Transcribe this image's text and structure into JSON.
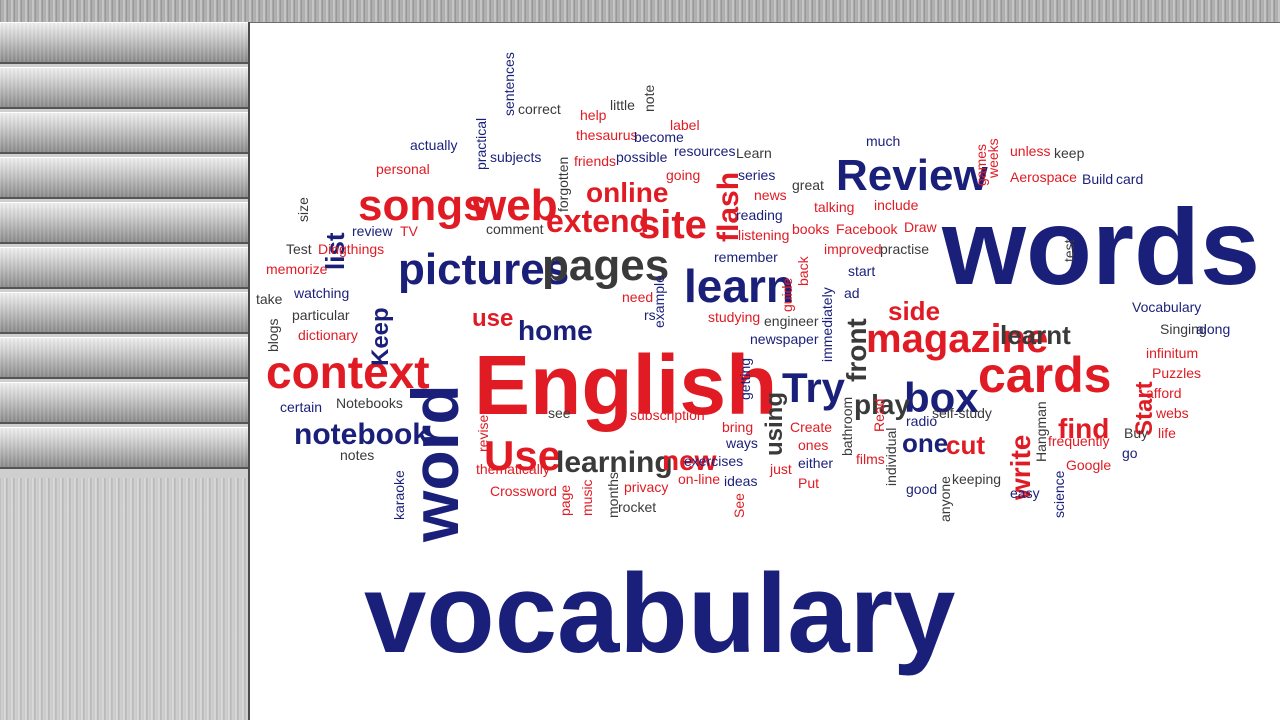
{
  "colors": {
    "red": "#e01b24",
    "navy": "#1a1f7a",
    "gray": "#3a3a3a"
  },
  "words": [
    {
      "t": "vocabulary",
      "c": "navy"
    },
    {
      "t": "words",
      "c": "navy"
    },
    {
      "t": "English",
      "c": "red"
    },
    {
      "t": "word",
      "c": "navy"
    },
    {
      "t": "pictures",
      "c": "navy"
    },
    {
      "t": "pages",
      "c": "gray"
    },
    {
      "t": "context",
      "c": "red"
    },
    {
      "t": "Review",
      "c": "navy"
    },
    {
      "t": "songs",
      "c": "red"
    },
    {
      "t": "web",
      "c": "red"
    },
    {
      "t": "cards",
      "c": "red"
    },
    {
      "t": "magazine",
      "c": "red"
    },
    {
      "t": "learn",
      "c": "navy"
    },
    {
      "t": "site",
      "c": "red"
    },
    {
      "t": "extend",
      "c": "red"
    },
    {
      "t": "online",
      "c": "red"
    },
    {
      "t": "box",
      "c": "navy"
    },
    {
      "t": "Try",
      "c": "navy"
    },
    {
      "t": "Use",
      "c": "red"
    },
    {
      "t": "notebook",
      "c": "navy"
    },
    {
      "t": "learning",
      "c": "gray"
    },
    {
      "t": "new",
      "c": "red"
    },
    {
      "t": "home",
      "c": "navy"
    },
    {
      "t": "flash",
      "c": "red"
    },
    {
      "t": "list",
      "c": "navy"
    },
    {
      "t": "Keep",
      "c": "navy"
    },
    {
      "t": "side",
      "c": "red"
    },
    {
      "t": "front",
      "c": "gray"
    },
    {
      "t": "play",
      "c": "gray"
    },
    {
      "t": "learnt",
      "c": "gray"
    },
    {
      "t": "find",
      "c": "red"
    },
    {
      "t": "write",
      "c": "red"
    },
    {
      "t": "cut",
      "c": "red"
    },
    {
      "t": "one",
      "c": "navy"
    },
    {
      "t": "using",
      "c": "gray"
    },
    {
      "t": "use",
      "c": "red"
    },
    {
      "t": "Start",
      "c": "red"
    },
    {
      "t": "Vocabulary",
      "c": "navy"
    },
    {
      "t": "Singing",
      "c": "gray"
    },
    {
      "t": "along",
      "c": "navy"
    },
    {
      "t": "infinitum",
      "c": "red"
    },
    {
      "t": "Puzzles",
      "c": "red"
    },
    {
      "t": "afford",
      "c": "red"
    },
    {
      "t": "webs",
      "c": "red"
    },
    {
      "t": "life",
      "c": "red"
    },
    {
      "t": "Buy",
      "c": "gray"
    },
    {
      "t": "go",
      "c": "navy"
    },
    {
      "t": "Google",
      "c": "red"
    },
    {
      "t": "frequently",
      "c": "red"
    },
    {
      "t": "easy",
      "c": "navy"
    },
    {
      "t": "science",
      "c": "navy"
    },
    {
      "t": "Hangman",
      "c": "gray"
    },
    {
      "t": "keeping",
      "c": "gray"
    },
    {
      "t": "self-study",
      "c": "gray"
    },
    {
      "t": "good",
      "c": "navy"
    },
    {
      "t": "anyone",
      "c": "gray"
    },
    {
      "t": "individual",
      "c": "gray"
    },
    {
      "t": "films",
      "c": "red"
    },
    {
      "t": "radio",
      "c": "navy"
    },
    {
      "t": "bathroom",
      "c": "gray"
    },
    {
      "t": "Read",
      "c": "red"
    },
    {
      "t": "either",
      "c": "navy"
    },
    {
      "t": "Put",
      "c": "red"
    },
    {
      "t": "just",
      "c": "red"
    },
    {
      "t": "ones",
      "c": "red"
    },
    {
      "t": "Create",
      "c": "red"
    },
    {
      "t": "ideas",
      "c": "navy"
    },
    {
      "t": "exercises",
      "c": "navy"
    },
    {
      "t": "on-line",
      "c": "red"
    },
    {
      "t": "ways",
      "c": "navy"
    },
    {
      "t": "bring",
      "c": "red"
    },
    {
      "t": "See",
      "c": "red"
    },
    {
      "t": "rocket",
      "c": "gray"
    },
    {
      "t": "privacy",
      "c": "red"
    },
    {
      "t": "subscription",
      "c": "red"
    },
    {
      "t": "months",
      "c": "gray"
    },
    {
      "t": "music",
      "c": "red"
    },
    {
      "t": "page",
      "c": "red"
    },
    {
      "t": "Crossword",
      "c": "red"
    },
    {
      "t": "thematically",
      "c": "red"
    },
    {
      "t": "see",
      "c": "gray"
    },
    {
      "t": "revise",
      "c": "red"
    },
    {
      "t": "karaoke",
      "c": "navy"
    },
    {
      "t": "notes",
      "c": "gray"
    },
    {
      "t": "certain",
      "c": "navy"
    },
    {
      "t": "Notebooks",
      "c": "gray"
    },
    {
      "t": "dictionary",
      "c": "red"
    },
    {
      "t": "particular",
      "c": "gray"
    },
    {
      "t": "watching",
      "c": "navy"
    },
    {
      "t": "blogs",
      "c": "gray"
    },
    {
      "t": "take",
      "c": "gray"
    },
    {
      "t": "memorize",
      "c": "red"
    },
    {
      "t": "Test",
      "c": "gray"
    },
    {
      "t": "Dingthings",
      "c": "red"
    },
    {
      "t": "review",
      "c": "navy"
    },
    {
      "t": "TV",
      "c": "red"
    },
    {
      "t": "size",
      "c": "gray"
    },
    {
      "t": "personal",
      "c": "red"
    },
    {
      "t": "actually",
      "c": "navy"
    },
    {
      "t": "practical",
      "c": "navy"
    },
    {
      "t": "subjects",
      "c": "navy"
    },
    {
      "t": "sentences",
      "c": "navy"
    },
    {
      "t": "correct",
      "c": "gray"
    },
    {
      "t": "comment",
      "c": "gray"
    },
    {
      "t": "forgotten",
      "c": "gray"
    },
    {
      "t": "help",
      "c": "red"
    },
    {
      "t": "little",
      "c": "gray"
    },
    {
      "t": "note",
      "c": "gray"
    },
    {
      "t": "thesaurus",
      "c": "red"
    },
    {
      "t": "become",
      "c": "navy"
    },
    {
      "t": "label",
      "c": "red"
    },
    {
      "t": "friends",
      "c": "red"
    },
    {
      "t": "possible",
      "c": "navy"
    },
    {
      "t": "resources",
      "c": "navy"
    },
    {
      "t": "going",
      "c": "red"
    },
    {
      "t": "Learn",
      "c": "gray"
    },
    {
      "t": "series",
      "c": "navy"
    },
    {
      "t": "news",
      "c": "red"
    },
    {
      "t": "great",
      "c": "gray"
    },
    {
      "t": "reading",
      "c": "navy"
    },
    {
      "t": "listening",
      "c": "red"
    },
    {
      "t": "books",
      "c": "red"
    },
    {
      "t": "talking",
      "c": "red"
    },
    {
      "t": "Facebook",
      "c": "red"
    },
    {
      "t": "include",
      "c": "red"
    },
    {
      "t": "Draw",
      "c": "red"
    },
    {
      "t": "improved",
      "c": "red"
    },
    {
      "t": "practise",
      "c": "gray"
    },
    {
      "t": "much",
      "c": "navy"
    },
    {
      "t": "games",
      "c": "red"
    },
    {
      "t": "weeks",
      "c": "red"
    },
    {
      "t": "unless",
      "c": "red"
    },
    {
      "t": "keep",
      "c": "gray"
    },
    {
      "t": "Aerospace",
      "c": "red"
    },
    {
      "t": "Build",
      "c": "navy"
    },
    {
      "t": "card",
      "c": "navy"
    },
    {
      "t": "test",
      "c": "gray"
    },
    {
      "t": "remember",
      "c": "navy"
    },
    {
      "t": "back",
      "c": "red"
    },
    {
      "t": "guide",
      "c": "red"
    },
    {
      "t": "start",
      "c": "navy"
    },
    {
      "t": "ad",
      "c": "navy"
    },
    {
      "t": "immediately",
      "c": "navy"
    },
    {
      "t": "need",
      "c": "red"
    },
    {
      "t": "rs",
      "c": "navy"
    },
    {
      "t": "example",
      "c": "navy"
    },
    {
      "t": "studying",
      "c": "red"
    },
    {
      "t": "engineer",
      "c": "gray"
    },
    {
      "t": "newspaper",
      "c": "navy"
    },
    {
      "t": "getting",
      "c": "navy"
    }
  ]
}
